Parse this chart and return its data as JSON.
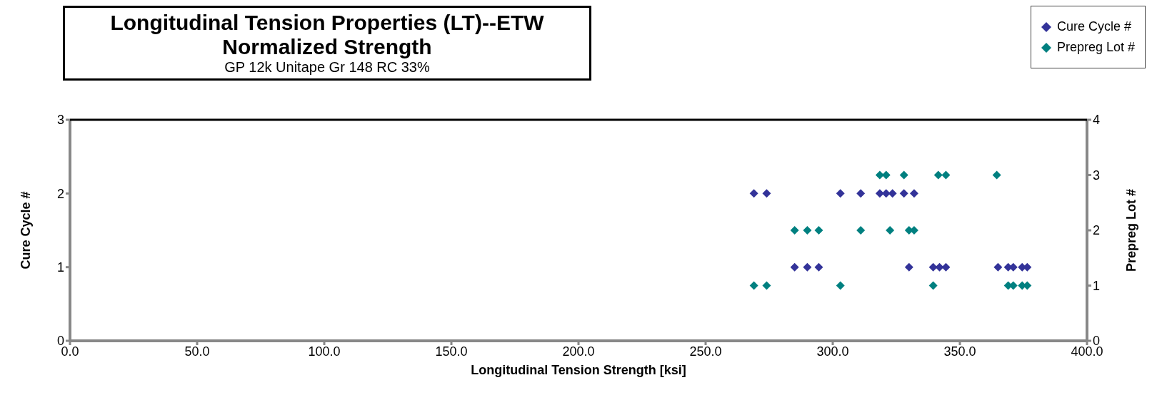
{
  "chart_data": {
    "type": "scatter",
    "title": "Longitudinal Tension Properties (LT)--ETW",
    "subtitle": "Normalized Strength",
    "annotations": [
      "GP 12k Unitape Gr 148 RC 33%"
    ],
    "xlabel": "Longitudinal Tension Strength [ksi]",
    "ylabel": "Cure Cycle #",
    "y2label": "Prepreg Lot #",
    "xlim": [
      0,
      400
    ],
    "xticks": [
      {
        "value": 0,
        "label": "0.0"
      },
      {
        "value": 50,
        "label": "50.0"
      },
      {
        "value": 100,
        "label": "100.0"
      },
      {
        "value": 150,
        "label": "150.0"
      },
      {
        "value": 200,
        "label": "200.0"
      },
      {
        "value": 250,
        "label": "250.0"
      },
      {
        "value": 300,
        "label": "300.0"
      },
      {
        "value": 350,
        "label": "350.0"
      },
      {
        "value": 400,
        "label": "400.0"
      }
    ],
    "ylim": [
      0,
      3
    ],
    "yticks": [
      0,
      1,
      2,
      3
    ],
    "y2lim": [
      0,
      4
    ],
    "y2ticks": [
      0,
      1,
      2,
      3,
      4
    ],
    "marker": "diamond",
    "grid": false,
    "legend": "top right",
    "series": [
      {
        "name": "Cure Cycle #",
        "color": "#333399",
        "x": [
          269,
          274,
          303,
          311,
          318.5,
          321,
          323.5,
          328,
          332,
          285,
          290,
          294.5,
          330,
          339.5,
          342,
          344.5,
          365,
          369,
          371,
          374.5,
          376.5
        ],
        "values": [
          2,
          2,
          2,
          2,
          2,
          2,
          2,
          2,
          2,
          1,
          1,
          1,
          1,
          1,
          1,
          1,
          1,
          1,
          1,
          1,
          1
        ]
      },
      {
        "name": "Prepreg Lot #",
        "color": "#008080",
        "axis": "y2",
        "x": [
          318.5,
          321,
          328,
          341.5,
          344.5,
          364.5,
          285,
          290,
          294.5,
          311,
          322.5,
          330,
          332,
          269,
          274,
          303,
          339.5,
          369,
          371,
          374.5,
          376.5
        ],
        "values": [
          3,
          3,
          3,
          3,
          3,
          3,
          2,
          2,
          2,
          2,
          2,
          2,
          2,
          1,
          1,
          1,
          1,
          1,
          1,
          1,
          1
        ]
      }
    ]
  }
}
